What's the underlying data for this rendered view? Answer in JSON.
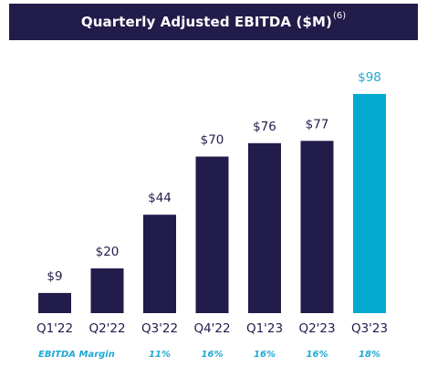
{
  "header": {
    "title": "Quarterly Adjusted EBITDA ($M)",
    "footnote": "(6)"
  },
  "colors": {
    "primary_bar": "#221c4a",
    "highlight_bar": "#04a9d0",
    "highlight_text": "#1fa9d4",
    "title_bg": "#221c4a"
  },
  "chart_data": {
    "type": "bar",
    "title": "Quarterly Adjusted EBITDA ($M)",
    "categories": [
      "Q1'22",
      "Q2'22",
      "Q3'22",
      "Q4'22",
      "Q1'23",
      "Q2'23",
      "Q3'23"
    ],
    "values": [
      9,
      20,
      44,
      70,
      76,
      77,
      98
    ],
    "value_labels": [
      "$9",
      "$20",
      "$44",
      "$70",
      "$76",
      "$77",
      "$98"
    ],
    "highlight_index": 6,
    "ylim": [
      0,
      100
    ],
    "grid": false,
    "secondary_row": {
      "label": "EBITDA Margin",
      "values": [
        "",
        "",
        "11%",
        "16%",
        "16%",
        "16%",
        "18%"
      ]
    }
  }
}
